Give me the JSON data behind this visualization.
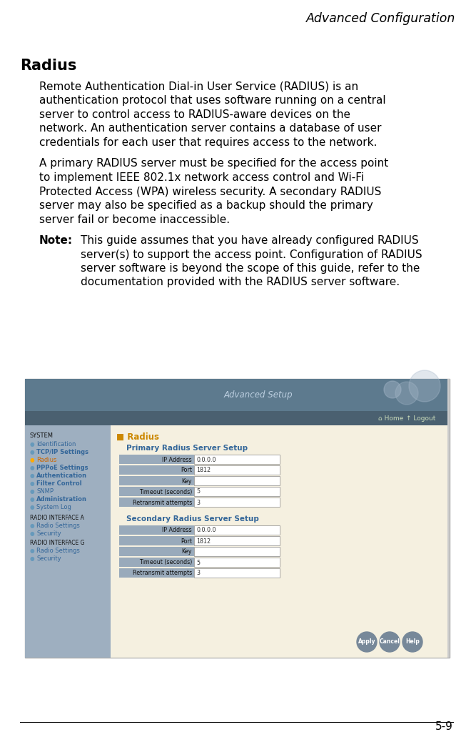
{
  "page_title": "Advanced Configuration",
  "page_number": "5-9",
  "section_title": "Radius",
  "para1_lines": [
    "Remote Authentication Dial-in User Service (RADIUS) is an",
    "authentication protocol that uses software running on a central",
    "server to control access to RADIUS-aware devices on the",
    "network. An authentication server contains a database of user",
    "credentials for each user that requires access to the network."
  ],
  "para2_lines": [
    "A primary RADIUS server must be specified for the access point",
    "to implement IEEE 802.1x network access control and Wi-Fi",
    "Protected Access (WPA) wireless security. A secondary RADIUS",
    "server may also be specified as a backup should the primary",
    "server fail or become inaccessible."
  ],
  "note_label": "Note:",
  "note_lines": [
    "This guide assumes that you have already configured RADIUS",
    "server(s) to support the access point. Configuration of RADIUS",
    "server software is beyond the scope of this guide, refer to the",
    "documentation provided with the RADIUS server software."
  ],
  "bg_color": "#ffffff",
  "text_color": "#000000",
  "header_title": "Advanced Setup",
  "header_bg": "#607d8b",
  "nav_bar_bg": "#546e7a",
  "sidebar_bg": "#9eafc0",
  "content_bg": "#f5f0e0",
  "nav_items_system": [
    "Identification",
    "TCP/IP Settings",
    "Radius",
    "PPPoE Settings",
    "Authentication",
    "Filter Control",
    "SNMP",
    "Administration",
    "System Log"
  ],
  "nav_items_radio_a": [
    "Radio Settings",
    "Security"
  ],
  "nav_items_radio_g": [
    "Radio Settings",
    "Security"
  ],
  "primary_fields": [
    "IP Address",
    "Port",
    "Key",
    "Timeout (seconds)",
    "Retransmit attempts"
  ],
  "primary_values": [
    "0.0.0.0",
    "1812",
    "",
    "5",
    "3"
  ],
  "secondary_fields": [
    "IP Address",
    "Port",
    "Key",
    "Timeout (seconds)",
    "Retransmit attempts"
  ],
  "secondary_values": [
    "0.0.0.0",
    "1812",
    "",
    "5",
    "3"
  ],
  "orange_color": "#cc8800",
  "blue_color": "#336699",
  "field_label_bg": "#99aabb",
  "field_label_bg2": "#aabbcc",
  "home_logout_color": "#ddeecc"
}
